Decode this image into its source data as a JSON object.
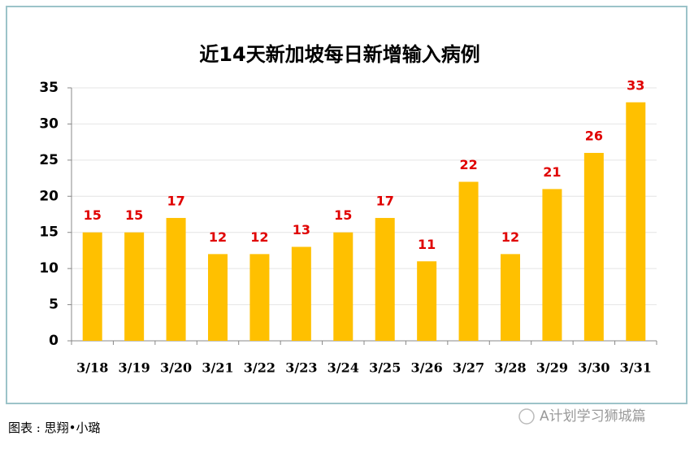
{
  "chart_data": {
    "type": "bar",
    "title": "近14天新加坡每日新增输入病例",
    "categories": [
      "3/18",
      "3/19",
      "3/20",
      "3/21",
      "3/22",
      "3/23",
      "3/24",
      "3/25",
      "3/26",
      "3/27",
      "3/28",
      "3/29",
      "3/30",
      "3/31"
    ],
    "values": [
      15,
      15,
      17,
      12,
      12,
      13,
      15,
      17,
      11,
      22,
      12,
      21,
      26,
      33
    ],
    "color": "#ffc000",
    "label_color": "#e00000",
    "ylim": [
      0,
      35
    ],
    "yticks": [
      0,
      5,
      10,
      15,
      20,
      25,
      30,
      35
    ],
    "grid": true
  },
  "caption": "图表 : 思翔•小璐",
  "watermark": "A计划学习狮城篇"
}
